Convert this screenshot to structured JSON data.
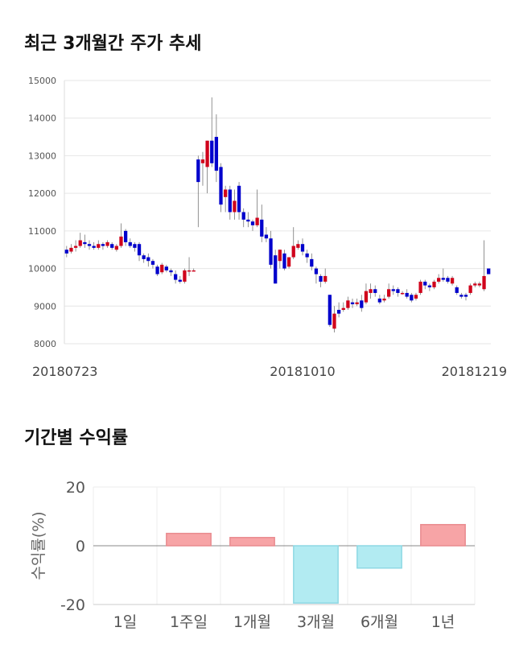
{
  "sections": {
    "price_title": "최근 3개월간 주가 추세",
    "returns_title": "기간별 수익률"
  },
  "chart_data": [
    {
      "type": "candlestick",
      "title": "최근 3개월간 주가 추세",
      "ylim": [
        8000,
        15000
      ],
      "y_ticks": [
        "15000",
        "14000",
        "13000",
        "12000",
        "11000",
        "10000",
        "9000",
        "8000"
      ],
      "x_tick_labels": [
        "20180723",
        "20181010",
        "20181219"
      ],
      "x_tick_index": [
        0,
        52,
        104
      ],
      "colors": {
        "up": "#d0021b",
        "down": "#0000cc"
      },
      "candles": [
        {
          "o": 10500,
          "c": 10400,
          "h": 10600,
          "l": 10300
        },
        {
          "o": 10450,
          "c": 10550,
          "h": 10650,
          "l": 10400
        },
        {
          "o": 10550,
          "c": 10600,
          "h": 10750,
          "l": 10450
        },
        {
          "o": 10600,
          "c": 10750,
          "h": 10950,
          "l": 10550
        },
        {
          "o": 10700,
          "c": 10650,
          "h": 10900,
          "l": 10550
        },
        {
          "o": 10650,
          "c": 10600,
          "h": 10750,
          "l": 10500
        },
        {
          "o": 10600,
          "c": 10550,
          "h": 10700,
          "l": 10500
        },
        {
          "o": 10550,
          "c": 10650,
          "h": 10750,
          "l": 10500
        },
        {
          "o": 10650,
          "c": 10600,
          "h": 10700,
          "l": 10500
        },
        {
          "o": 10600,
          "c": 10700,
          "h": 10750,
          "l": 10550
        },
        {
          "o": 10650,
          "c": 10550,
          "h": 10700,
          "l": 10500
        },
        {
          "o": 10500,
          "c": 10600,
          "h": 10650,
          "l": 10450
        },
        {
          "o": 10600,
          "c": 10850,
          "h": 11200,
          "l": 10550
        },
        {
          "o": 11000,
          "c": 10700,
          "h": 11050,
          "l": 10600
        },
        {
          "o": 10700,
          "c": 10600,
          "h": 10800,
          "l": 10550
        },
        {
          "o": 10650,
          "c": 10550,
          "h": 10700,
          "l": 10450
        },
        {
          "o": 10650,
          "c": 10350,
          "h": 10700,
          "l": 10200
        },
        {
          "o": 10350,
          "c": 10250,
          "h": 10400,
          "l": 10150
        },
        {
          "o": 10300,
          "c": 10200,
          "h": 10400,
          "l": 10050
        },
        {
          "o": 10200,
          "c": 10100,
          "h": 10250,
          "l": 10000
        },
        {
          "o": 10050,
          "c": 9850,
          "h": 10100,
          "l": 9800
        },
        {
          "o": 9900,
          "c": 10100,
          "h": 10150,
          "l": 9850
        },
        {
          "o": 10050,
          "c": 9950,
          "h": 10100,
          "l": 9900
        },
        {
          "o": 9950,
          "c": 9900,
          "h": 10000,
          "l": 9800
        },
        {
          "o": 9850,
          "c": 9700,
          "h": 9950,
          "l": 9600
        },
        {
          "o": 9700,
          "c": 9650,
          "h": 9800,
          "l": 9600
        },
        {
          "o": 9650,
          "c": 9950,
          "h": 10000,
          "l": 9600
        },
        {
          "o": 9950,
          "c": 9950,
          "h": 10300,
          "l": 9800
        },
        {
          "o": 9950,
          "c": 9950,
          "h": 10000,
          "l": 9950
        },
        {
          "o": 12900,
          "c": 12300,
          "h": 13000,
          "l": 11100
        },
        {
          "o": 12800,
          "c": 12900,
          "h": 13100,
          "l": 12200
        },
        {
          "o": 12700,
          "c": 13400,
          "h": 13400,
          "l": 12000
        },
        {
          "o": 13400,
          "c": 12800,
          "h": 14550,
          "l": 12700
        },
        {
          "o": 13500,
          "c": 12600,
          "h": 14100,
          "l": 12300
        },
        {
          "o": 12700,
          "c": 11700,
          "h": 12800,
          "l": 11500
        },
        {
          "o": 11900,
          "c": 12100,
          "h": 12200,
          "l": 11500
        },
        {
          "o": 12100,
          "c": 11500,
          "h": 12200,
          "l": 11300
        },
        {
          "o": 11500,
          "c": 11800,
          "h": 12100,
          "l": 11300
        },
        {
          "o": 12200,
          "c": 11500,
          "h": 12300,
          "l": 11300
        },
        {
          "o": 11500,
          "c": 11300,
          "h": 11600,
          "l": 11100
        },
        {
          "o": 11300,
          "c": 11250,
          "h": 11500,
          "l": 11100
        },
        {
          "o": 11250,
          "c": 11150,
          "h": 11300,
          "l": 11000
        },
        {
          "o": 11150,
          "c": 11350,
          "h": 12100,
          "l": 11100
        },
        {
          "o": 11300,
          "c": 10850,
          "h": 11700,
          "l": 10700
        },
        {
          "o": 10900,
          "c": 10800,
          "h": 11100,
          "l": 10700
        },
        {
          "o": 10800,
          "c": 10100,
          "h": 11000,
          "l": 10000
        },
        {
          "o": 10350,
          "c": 9600,
          "h": 10500,
          "l": 9600
        },
        {
          "o": 10200,
          "c": 10500,
          "h": 10500,
          "l": 10000
        },
        {
          "o": 10400,
          "c": 10000,
          "h": 10500,
          "l": 9950
        },
        {
          "o": 10050,
          "c": 10300,
          "h": 10300,
          "l": 10000
        },
        {
          "o": 10300,
          "c": 10600,
          "h": 11100,
          "l": 10250
        },
        {
          "o": 10550,
          "c": 10650,
          "h": 10750,
          "l": 10500
        },
        {
          "o": 10650,
          "c": 10450,
          "h": 10800,
          "l": 10350
        },
        {
          "o": 10400,
          "c": 10300,
          "h": 10500,
          "l": 10150
        },
        {
          "o": 10250,
          "c": 10050,
          "h": 10400,
          "l": 9950
        },
        {
          "o": 10000,
          "c": 9850,
          "h": 10050,
          "l": 9600
        },
        {
          "o": 9800,
          "c": 9650,
          "h": 9850,
          "l": 9500
        },
        {
          "o": 9650,
          "c": 9800,
          "h": 10000,
          "l": 9600
        },
        {
          "o": 9300,
          "c": 8500,
          "h": 9300,
          "l": 8450
        },
        {
          "o": 8400,
          "c": 8800,
          "h": 9000,
          "l": 8300
        },
        {
          "o": 8900,
          "c": 8800,
          "h": 9100,
          "l": 8700
        },
        {
          "o": 8900,
          "c": 8950,
          "h": 9100,
          "l": 8850
        },
        {
          "o": 8950,
          "c": 9150,
          "h": 9250,
          "l": 8900
        },
        {
          "o": 9100,
          "c": 9050,
          "h": 9200,
          "l": 8950
        },
        {
          "o": 9050,
          "c": 9100,
          "h": 9200,
          "l": 9000
        },
        {
          "o": 9150,
          "c": 8950,
          "h": 9300,
          "l": 8850
        },
        {
          "o": 9100,
          "c": 9400,
          "h": 9600,
          "l": 9050
        },
        {
          "o": 9350,
          "c": 9450,
          "h": 9600,
          "l": 9200
        },
        {
          "o": 9450,
          "c": 9350,
          "h": 9550,
          "l": 9250
        },
        {
          "o": 9200,
          "c": 9100,
          "h": 9300,
          "l": 9050
        },
        {
          "o": 9150,
          "c": 9200,
          "h": 9300,
          "l": 9100
        },
        {
          "o": 9250,
          "c": 9450,
          "h": 9600,
          "l": 9200
        },
        {
          "o": 9450,
          "c": 9400,
          "h": 9550,
          "l": 9300
        },
        {
          "o": 9450,
          "c": 9350,
          "h": 9500,
          "l": 9250
        },
        {
          "o": 9350,
          "c": 9350,
          "h": 9400,
          "l": 9300
        },
        {
          "o": 9350,
          "c": 9250,
          "h": 9450,
          "l": 9200
        },
        {
          "o": 9300,
          "c": 9150,
          "h": 9350,
          "l": 9100
        },
        {
          "o": 9200,
          "c": 9300,
          "h": 9350,
          "l": 9150
        },
        {
          "o": 9350,
          "c": 9650,
          "h": 9700,
          "l": 9300
        },
        {
          "o": 9650,
          "c": 9550,
          "h": 9700,
          "l": 9450
        },
        {
          "o": 9550,
          "c": 9500,
          "h": 9600,
          "l": 9400
        },
        {
          "o": 9500,
          "c": 9650,
          "h": 9700,
          "l": 9450
        },
        {
          "o": 9650,
          "c": 9750,
          "h": 9850,
          "l": 9600
        },
        {
          "o": 9750,
          "c": 9700,
          "h": 10000,
          "l": 9650
        },
        {
          "o": 9750,
          "c": 9650,
          "h": 9800,
          "l": 9600
        },
        {
          "o": 9600,
          "c": 9750,
          "h": 9800,
          "l": 9550
        },
        {
          "o": 9500,
          "c": 9350,
          "h": 9550,
          "l": 9300
        },
        {
          "o": 9300,
          "c": 9250,
          "h": 9350,
          "l": 9200
        },
        {
          "o": 9300,
          "c": 9250,
          "h": 9350,
          "l": 9150
        },
        {
          "o": 9350,
          "c": 9550,
          "h": 9600,
          "l": 9300
        },
        {
          "o": 9550,
          "c": 9600,
          "h": 9650,
          "l": 9500
        },
        {
          "o": 9550,
          "c": 9600,
          "h": 9650,
          "l": 9500
        },
        {
          "o": 9450,
          "c": 9800,
          "h": 10750,
          "l": 9400
        },
        {
          "o": 10000,
          "c": 9850,
          "h": 10000,
          "l": 9850
        }
      ]
    },
    {
      "type": "bar",
      "title": "기간별 수익률",
      "ylabel": "수익률(%)",
      "ylim": [
        -20,
        20
      ],
      "y_ticks": [
        "20",
        "0",
        "-20"
      ],
      "categories": [
        "1일",
        "1주일",
        "1개월",
        "3개월",
        "6개월",
        "1년"
      ],
      "values": [
        0,
        4.2,
        2.8,
        -19.5,
        -7.6,
        7.2
      ],
      "colors": {
        "positive": "#f7a4a6",
        "positive_stroke": "#e98b8f",
        "negative": "#b2ebf2",
        "negative_stroke": "#8ed8e4"
      }
    }
  ]
}
